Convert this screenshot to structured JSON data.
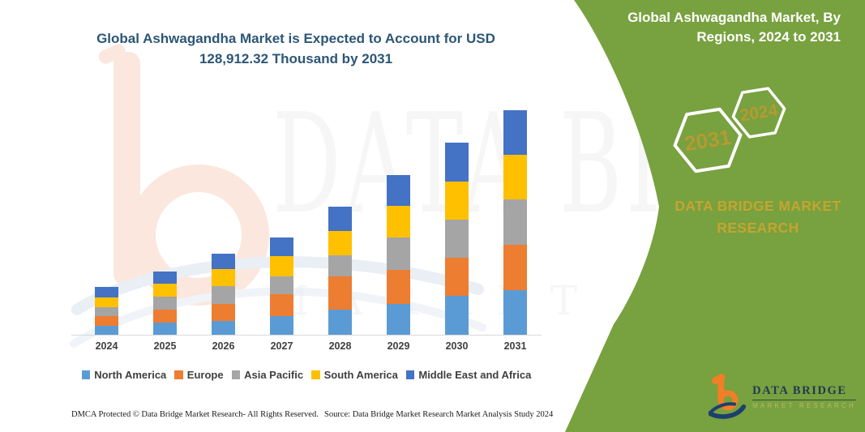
{
  "header": {
    "main_title": "Global Ashwagandha Market is Expected to Account for USD 128,912.32 Thousand by 2031"
  },
  "side_panel": {
    "title": "Global Ashwagandha Market, By Regions, 2024 to 2031",
    "hexagons": [
      {
        "label": "2031"
      },
      {
        "label": "2024"
      }
    ],
    "brand_line1": "DATA BRIDGE MARKET",
    "brand_line2": "RESEARCH",
    "colors": {
      "background": "#78A13F",
      "gold": "#B49B32",
      "white": "#FFFFFF"
    }
  },
  "logo": {
    "name": "DATA BRIDGE",
    "subtitle": "MARKET RESEARCH"
  },
  "watermark": {
    "big_text": "DATA BRIDGE",
    "row_text": "MARKET RESEARCH"
  },
  "footer": {
    "left": "DMCA Protected © Data Bridge Market Research-  All Rights Reserved.",
    "right": "Source: Data Bridge Market Research  Market Analysis Study 2024"
  },
  "chart_data": {
    "type": "bar",
    "stacked": true,
    "unit": "USD Thousand",
    "title": "Global Ashwagandha Market, By Regions, 2024 to 2031",
    "highlight_value_2031": 128912.32,
    "categories": [
      "2024",
      "2025",
      "2026",
      "2027",
      "2028",
      "2029",
      "2030",
      "2031"
    ],
    "series": [
      {
        "name": "North America",
        "color": "#5B9BD5",
        "values": [
          5120,
          6980,
          7910,
          10700,
          14430,
          17690,
          22340,
          25600
        ]
      },
      {
        "name": "Europe",
        "color": "#ED7D31",
        "values": [
          5580,
          7450,
          9770,
          12570,
          19080,
          19550,
          21870,
          26060
        ]
      },
      {
        "name": "Asia Pacific",
        "color": "#A5A5A5",
        "values": [
          5120,
          7450,
          10240,
          10240,
          12100,
          18620,
          21870,
          26060
        ]
      },
      {
        "name": "South America",
        "color": "#FFC000",
        "values": [
          5580,
          7450,
          9770,
          11630,
          13960,
          18150,
          21870,
          25600
        ]
      },
      {
        "name": "Middle East and Africa",
        "color": "#4472C4",
        "values": [
          6050,
          6980,
          8840,
          10700,
          13960,
          17690,
          22340,
          25592.32
        ]
      }
    ],
    "totals": [
      27450,
      36310,
      46530,
      55840,
      73530,
      91700,
      110290,
      128912.32
    ],
    "value_per_pixel": 465.4,
    "legend_position": "bottom",
    "grid": false
  }
}
